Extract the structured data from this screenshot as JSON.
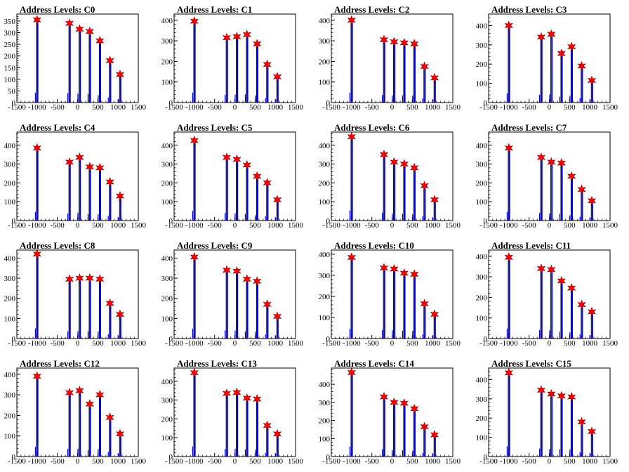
{
  "chart_data": [
    {
      "type": "histogram",
      "title": "Address Levels: C0",
      "xlim": [
        -1500,
        1500
      ],
      "ylim": [
        0,
        380
      ],
      "yticks": [
        0,
        50,
        100,
        150,
        200,
        250,
        300,
        350
      ],
      "xticks": [
        -1500,
        -1000,
        -500,
        0,
        500,
        1000,
        1500
      ],
      "peaks": [
        {
          "x": -1000,
          "y": 355
        },
        {
          "x": -200,
          "y": 340
        },
        {
          "x": 50,
          "y": 315
        },
        {
          "x": 300,
          "y": 305
        },
        {
          "x": 550,
          "y": 265
        },
        {
          "x": 800,
          "y": 180
        },
        {
          "x": 1050,
          "y": 120
        }
      ]
    },
    {
      "type": "histogram",
      "title": "Address Levels: C1",
      "xlim": [
        -1500,
        1500
      ],
      "ylim": [
        0,
        430
      ],
      "yticks": [
        0,
        100,
        200,
        300,
        400
      ],
      "xticks": [
        -1500,
        -1000,
        -500,
        0,
        500,
        1000,
        1500
      ],
      "peaks": [
        {
          "x": -1000,
          "y": 395
        },
        {
          "x": -200,
          "y": 315
        },
        {
          "x": 50,
          "y": 320
        },
        {
          "x": 300,
          "y": 330
        },
        {
          "x": 550,
          "y": 285
        },
        {
          "x": 800,
          "y": 185
        },
        {
          "x": 1050,
          "y": 125
        }
      ]
    },
    {
      "type": "histogram",
      "title": "Address Levels: C2",
      "xlim": [
        -1500,
        1500
      ],
      "ylim": [
        0,
        430
      ],
      "yticks": [
        0,
        100,
        200,
        300,
        400
      ],
      "xticks": [
        -1500,
        -1000,
        -500,
        0,
        500,
        1000,
        1500
      ],
      "peaks": [
        {
          "x": -1000,
          "y": 400
        },
        {
          "x": -200,
          "y": 305
        },
        {
          "x": 50,
          "y": 295
        },
        {
          "x": 300,
          "y": 290
        },
        {
          "x": 550,
          "y": 285
        },
        {
          "x": 800,
          "y": 175
        },
        {
          "x": 1050,
          "y": 120
        }
      ]
    },
    {
      "type": "histogram",
      "title": "Address Levels: C3",
      "xlim": [
        -1500,
        1500
      ],
      "ylim": [
        0,
        460
      ],
      "yticks": [
        0,
        100,
        200,
        300,
        400
      ],
      "xticks": [
        -1500,
        -1000,
        -500,
        0,
        500,
        1000,
        1500
      ],
      "peaks": [
        {
          "x": -1000,
          "y": 400
        },
        {
          "x": -200,
          "y": 340
        },
        {
          "x": 50,
          "y": 355
        },
        {
          "x": 300,
          "y": 255
        },
        {
          "x": 550,
          "y": 290
        },
        {
          "x": 800,
          "y": 190
        },
        {
          "x": 1050,
          "y": 115
        }
      ]
    },
    {
      "type": "histogram",
      "title": "Address Levels: C4",
      "xlim": [
        -1500,
        1500
      ],
      "ylim": [
        0,
        470
      ],
      "yticks": [
        0,
        100,
        200,
        300,
        400
      ],
      "xticks": [
        -1500,
        -1000,
        -500,
        0,
        500,
        1000,
        1500
      ],
      "peaks": [
        {
          "x": -1000,
          "y": 385
        },
        {
          "x": -200,
          "y": 310
        },
        {
          "x": 50,
          "y": 335
        },
        {
          "x": 300,
          "y": 285
        },
        {
          "x": 550,
          "y": 280
        },
        {
          "x": 800,
          "y": 205
        },
        {
          "x": 1050,
          "y": 130
        }
      ]
    },
    {
      "type": "histogram",
      "title": "Address Levels: C5",
      "xlim": [
        -1500,
        1500
      ],
      "ylim": [
        0,
        470
      ],
      "yticks": [
        0,
        100,
        200,
        300,
        400
      ],
      "xticks": [
        -1500,
        -1000,
        -500,
        0,
        500,
        1000,
        1500
      ],
      "peaks": [
        {
          "x": -1000,
          "y": 425
        },
        {
          "x": -200,
          "y": 335
        },
        {
          "x": 50,
          "y": 325
        },
        {
          "x": 300,
          "y": 295
        },
        {
          "x": 550,
          "y": 235
        },
        {
          "x": 800,
          "y": 200
        },
        {
          "x": 1050,
          "y": 110
        }
      ]
    },
    {
      "type": "histogram",
      "title": "Address Levels: C6",
      "xlim": [
        -1500,
        1500
      ],
      "ylim": [
        0,
        470
      ],
      "yticks": [
        0,
        100,
        200,
        300,
        400
      ],
      "xticks": [
        -1500,
        -1000,
        -500,
        0,
        500,
        1000,
        1500
      ],
      "peaks": [
        {
          "x": -1000,
          "y": 445
        },
        {
          "x": -200,
          "y": 350
        },
        {
          "x": 50,
          "y": 310
        },
        {
          "x": 300,
          "y": 300
        },
        {
          "x": 550,
          "y": 280
        },
        {
          "x": 800,
          "y": 185
        },
        {
          "x": 1050,
          "y": 110
        }
      ]
    },
    {
      "type": "histogram",
      "title": "Address Levels: C7",
      "xlim": [
        -1500,
        1500
      ],
      "ylim": [
        0,
        470
      ],
      "yticks": [
        0,
        100,
        200,
        300,
        400
      ],
      "xticks": [
        -1500,
        -1000,
        -500,
        0,
        500,
        1000,
        1500
      ],
      "peaks": [
        {
          "x": -1000,
          "y": 385
        },
        {
          "x": -200,
          "y": 335
        },
        {
          "x": 50,
          "y": 310
        },
        {
          "x": 300,
          "y": 305
        },
        {
          "x": 550,
          "y": 235
        },
        {
          "x": 800,
          "y": 165
        },
        {
          "x": 1050,
          "y": 105
        }
      ]
    },
    {
      "type": "histogram",
      "title": "Address Levels: C8",
      "xlim": [
        -1500,
        1500
      ],
      "ylim": [
        0,
        440
      ],
      "yticks": [
        0,
        100,
        200,
        300,
        400
      ],
      "xticks": [
        -1500,
        -1000,
        -500,
        0,
        500,
        1000,
        1500
      ],
      "peaks": [
        {
          "x": -1000,
          "y": 420
        },
        {
          "x": -200,
          "y": 295
        },
        {
          "x": 50,
          "y": 300
        },
        {
          "x": 300,
          "y": 300
        },
        {
          "x": 550,
          "y": 295
        },
        {
          "x": 800,
          "y": 175
        },
        {
          "x": 1050,
          "y": 120
        }
      ]
    },
    {
      "type": "histogram",
      "title": "Address Levels: C9",
      "xlim": [
        -1500,
        1500
      ],
      "ylim": [
        0,
        440
      ],
      "yticks": [
        0,
        100,
        200,
        300,
        400
      ],
      "xticks": [
        -1500,
        -1000,
        -500,
        0,
        500,
        1000,
        1500
      ],
      "peaks": [
        {
          "x": -1000,
          "y": 405
        },
        {
          "x": -200,
          "y": 340
        },
        {
          "x": 50,
          "y": 335
        },
        {
          "x": 300,
          "y": 295
        },
        {
          "x": 550,
          "y": 285
        },
        {
          "x": 800,
          "y": 170
        },
        {
          "x": 1050,
          "y": 110
        }
      ]
    },
    {
      "type": "histogram",
      "title": "Address Levels: C10",
      "xlim": [
        -1500,
        1500
      ],
      "ylim": [
        0,
        420
      ],
      "yticks": [
        0,
        100,
        200,
        300,
        400
      ],
      "xticks": [
        -1500,
        -1000,
        -500,
        0,
        500,
        1000,
        1500
      ],
      "peaks": [
        {
          "x": -1000,
          "y": 385
        },
        {
          "x": -200,
          "y": 335
        },
        {
          "x": 50,
          "y": 330
        },
        {
          "x": 300,
          "y": 310
        },
        {
          "x": 550,
          "y": 305
        },
        {
          "x": 800,
          "y": 165
        },
        {
          "x": 1050,
          "y": 115
        }
      ]
    },
    {
      "type": "histogram",
      "title": "Address Levels: C11",
      "xlim": [
        -1500,
        1500
      ],
      "ylim": [
        0,
        430
      ],
      "yticks": [
        0,
        100,
        200,
        300,
        400
      ],
      "xticks": [
        -1500,
        -1000,
        -500,
        0,
        500,
        1000,
        1500
      ],
      "peaks": [
        {
          "x": -1000,
          "y": 395
        },
        {
          "x": -200,
          "y": 340
        },
        {
          "x": 50,
          "y": 335
        },
        {
          "x": 300,
          "y": 280
        },
        {
          "x": 550,
          "y": 245
        },
        {
          "x": 800,
          "y": 165
        },
        {
          "x": 1050,
          "y": 130
        }
      ]
    },
    {
      "type": "histogram",
      "title": "Address Levels: C12",
      "xlim": [
        -1500,
        1500
      ],
      "ylim": [
        0,
        430
      ],
      "yticks": [
        0,
        100,
        200,
        300,
        400
      ],
      "xticks": [
        -1500,
        -1000,
        -500,
        0,
        500,
        1000,
        1500
      ],
      "peaks": [
        {
          "x": -1000,
          "y": 390
        },
        {
          "x": -200,
          "y": 310
        },
        {
          "x": 50,
          "y": 320
        },
        {
          "x": 300,
          "y": 255
        },
        {
          "x": 550,
          "y": 300
        },
        {
          "x": 800,
          "y": 190
        },
        {
          "x": 1050,
          "y": 110
        }
      ]
    },
    {
      "type": "histogram",
      "title": "Address Levels: C13",
      "xlim": [
        -1500,
        1500
      ],
      "ylim": [
        0,
        470
      ],
      "yticks": [
        0,
        100,
        200,
        300,
        400
      ],
      "xticks": [
        -1500,
        -1000,
        -500,
        0,
        500,
        1000,
        1500
      ],
      "peaks": [
        {
          "x": -1000,
          "y": 445
        },
        {
          "x": -200,
          "y": 335
        },
        {
          "x": 50,
          "y": 340
        },
        {
          "x": 300,
          "y": 310
        },
        {
          "x": 550,
          "y": 305
        },
        {
          "x": 800,
          "y": 165
        },
        {
          "x": 1050,
          "y": 120
        }
      ]
    },
    {
      "type": "histogram",
      "title": "Address Levels: C14",
      "xlim": [
        -1500,
        1500
      ],
      "ylim": [
        0,
        490
      ],
      "yticks": [
        0,
        100,
        200,
        300,
        400
      ],
      "xticks": [
        -1500,
        -1000,
        -500,
        0,
        500,
        1000,
        1500
      ],
      "peaks": [
        {
          "x": -1000,
          "y": 465
        },
        {
          "x": -200,
          "y": 330
        },
        {
          "x": 50,
          "y": 300
        },
        {
          "x": 300,
          "y": 295
        },
        {
          "x": 550,
          "y": 265
        },
        {
          "x": 800,
          "y": 165
        },
        {
          "x": 1050,
          "y": 120
        }
      ]
    },
    {
      "type": "histogram",
      "title": "Address Levels: C15",
      "xlim": [
        -1500,
        1500
      ],
      "ylim": [
        0,
        460
      ],
      "yticks": [
        0,
        100,
        200,
        300,
        400
      ],
      "xticks": [
        -1500,
        -1000,
        -500,
        0,
        500,
        1000,
        1500
      ],
      "peaks": [
        {
          "x": -1000,
          "y": 435
        },
        {
          "x": -200,
          "y": 345
        },
        {
          "x": 50,
          "y": 325
        },
        {
          "x": 300,
          "y": 315
        },
        {
          "x": 550,
          "y": 310
        },
        {
          "x": 800,
          "y": 180
        },
        {
          "x": 1050,
          "y": 130
        }
      ]
    }
  ],
  "colors": {
    "histogram": "#0000ff",
    "spike": "#000000",
    "marker_fill": "#ff0000",
    "marker_stroke": "#800000",
    "axis": "#000000"
  }
}
